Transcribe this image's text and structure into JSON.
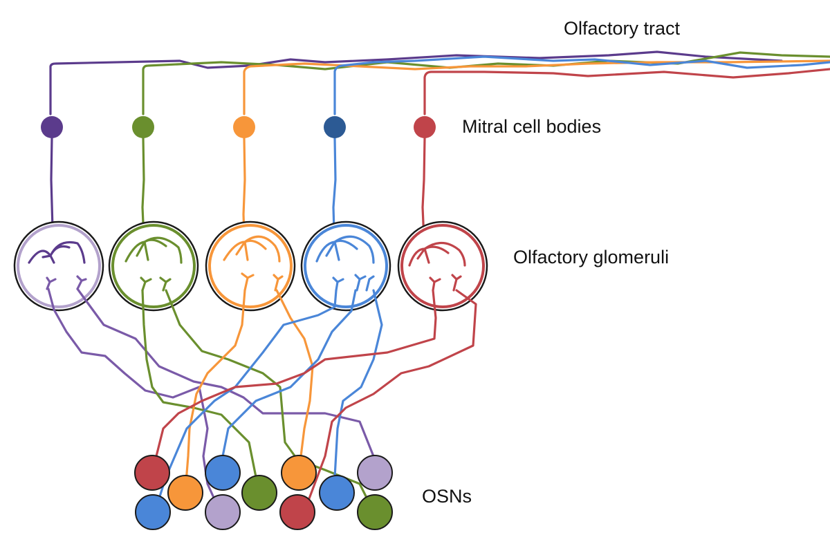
{
  "labels": {
    "olfactory_tract": "Olfactory tract",
    "mitral_cell_bodies": "Mitral cell bodies",
    "olfactory_glomeruli": "Olfactory glomeruli",
    "osns": "OSNs"
  },
  "colors": {
    "purple": "#5b3b8c",
    "purple_light": "#7a5aa8",
    "purple_osn": "#b3a2cc",
    "green": "#6a8f2e",
    "green_dark": "#5a7f22",
    "orange": "#f7963a",
    "blue": "#4a86d8",
    "blue_dark": "#2c5a94",
    "red": "#c0444a",
    "outline": "#1a1a1a"
  },
  "cell_types": [
    "purple",
    "green",
    "orange",
    "blue",
    "red"
  ]
}
